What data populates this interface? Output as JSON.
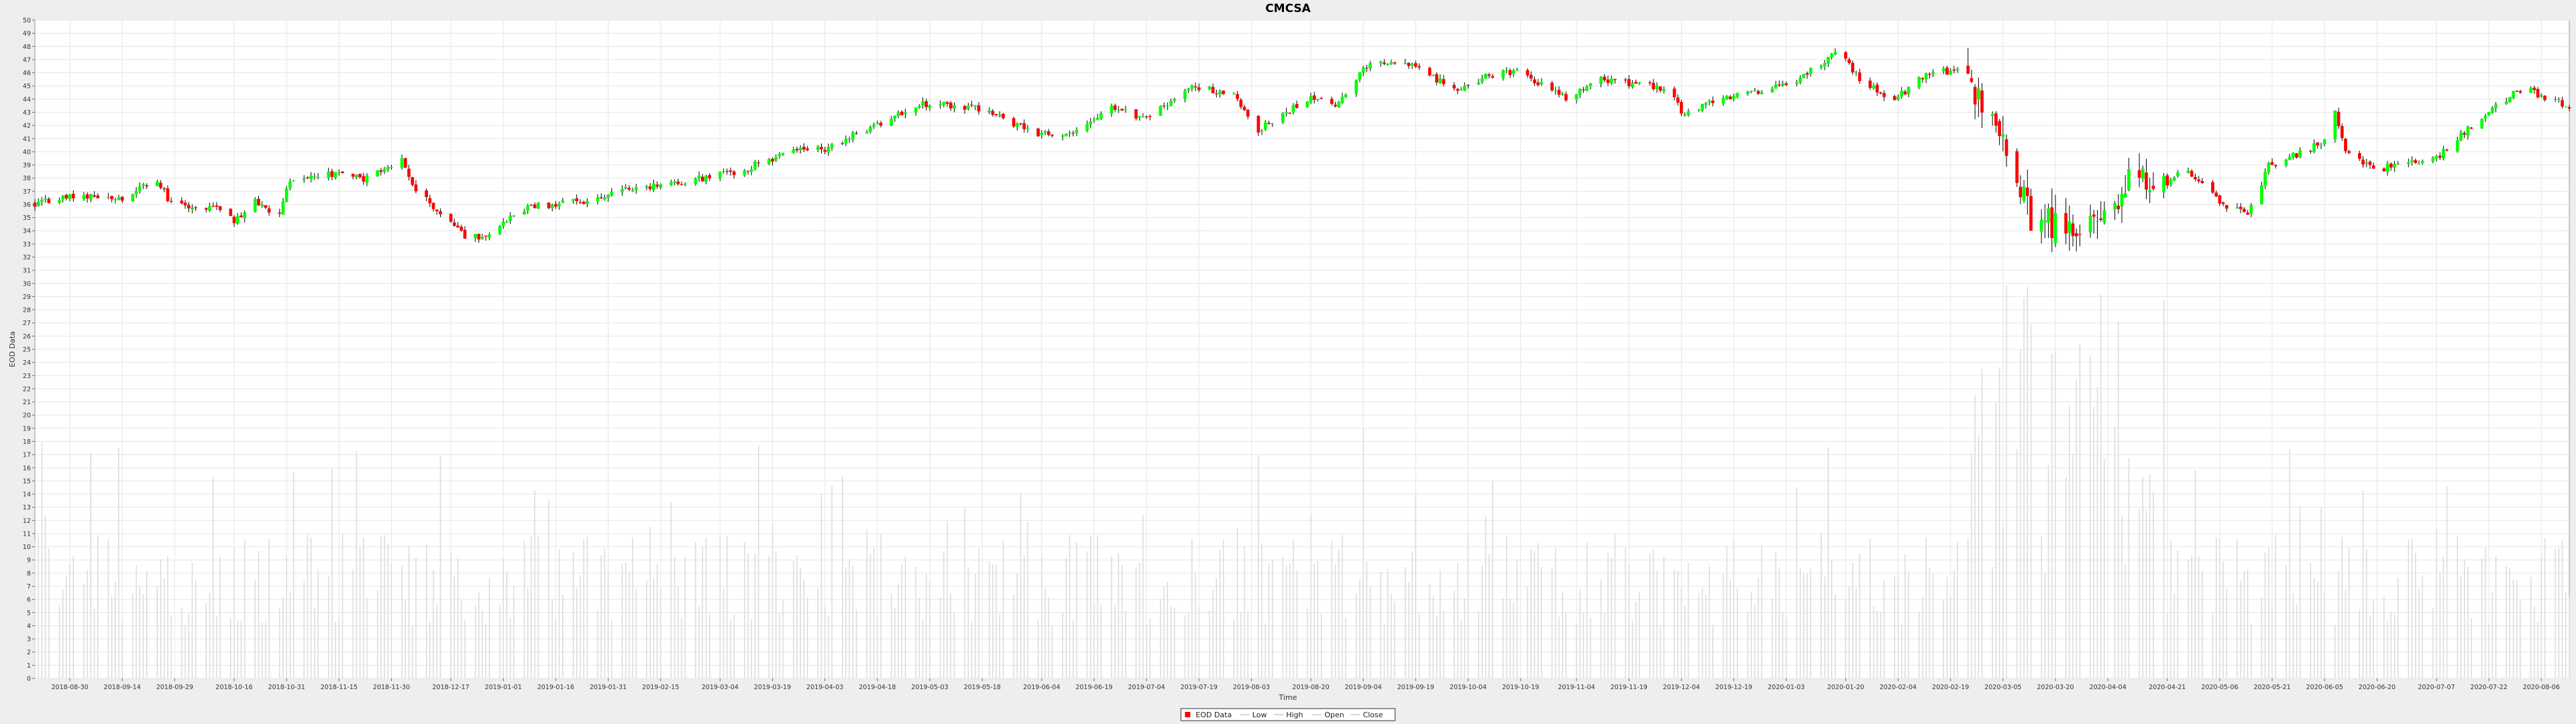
{
  "chart_data": {
    "type": "candlestick",
    "title": "CMCSA",
    "xlabel": "Time",
    "ylabel": "EOD Data",
    "ylim": [
      0,
      50
    ],
    "y_ticks": [
      0,
      1,
      2,
      3,
      4,
      5,
      6,
      7,
      8,
      9,
      10,
      11,
      12,
      13,
      14,
      15,
      16,
      17,
      18,
      19,
      20,
      21,
      22,
      23,
      24,
      25,
      26,
      27,
      28,
      29,
      30,
      31,
      32,
      33,
      34,
      35,
      36,
      37,
      38,
      39,
      40,
      41,
      42,
      43,
      44,
      45,
      46,
      47,
      48,
      49,
      50
    ],
    "x_range": [
      "2018-08-20",
      "2020-08-14"
    ],
    "x_ticks": [
      "2018-08-30",
      "2018-09-14",
      "2018-09-29",
      "2018-10-16",
      "2018-10-31",
      "2018-11-15",
      "2018-11-30",
      "2018-12-17",
      "2019-01-01",
      "2019-01-16",
      "2019-01-31",
      "2019-02-15",
      "2019-03-04",
      "2019-03-19",
      "2019-04-03",
      "2019-04-18",
      "2019-05-03",
      "2019-05-18",
      "2019-06-04",
      "2019-06-19",
      "2019-07-04",
      "2019-07-19",
      "2019-08-03",
      "2019-08-20",
      "2019-09-04",
      "2019-09-19",
      "2019-10-04",
      "2019-10-19",
      "2019-11-04",
      "2019-11-19",
      "2019-12-04",
      "2019-12-19",
      "2020-01-03",
      "2020-01-20",
      "2020-02-04",
      "2020-02-19",
      "2020-03-05",
      "2020-03-20",
      "2020-04-04",
      "2020-04-21",
      "2020-05-06",
      "2020-05-21",
      "2020-06-05",
      "2020-06-20",
      "2020-07-07",
      "2020-07-22",
      "2020-08-06"
    ],
    "price_path": [
      [
        "2018-08-20",
        36.1
      ],
      [
        "2018-09-01",
        36.6
      ],
      [
        "2018-09-14",
        36.4
      ],
      [
        "2018-09-24",
        37.9
      ],
      [
        "2018-09-28",
        36.0
      ],
      [
        "2018-10-12",
        35.6
      ],
      [
        "2018-10-16",
        34.6
      ],
      [
        "2018-10-22",
        36.4
      ],
      [
        "2018-10-28",
        34.7
      ],
      [
        "2018-11-01",
        38.0
      ],
      [
        "2018-11-15",
        38.3
      ],
      [
        "2018-11-22",
        37.9
      ],
      [
        "2018-12-03",
        39.3
      ],
      [
        "2018-12-06",
        37.4
      ],
      [
        "2018-12-21",
        33.5
      ],
      [
        "2018-12-27",
        33.6
      ],
      [
        "2019-01-08",
        35.8
      ],
      [
        "2019-01-25",
        36.3
      ],
      [
        "2019-02-01",
        36.9
      ],
      [
        "2019-02-20",
        37.6
      ],
      [
        "2019-03-10",
        38.6
      ],
      [
        "2019-03-25",
        40.0
      ],
      [
        "2019-04-03",
        40.2
      ],
      [
        "2019-04-20",
        42.3
      ],
      [
        "2019-04-30",
        43.7
      ],
      [
        "2019-05-15",
        43.4
      ],
      [
        "2019-06-04",
        41.3
      ],
      [
        "2019-06-12",
        41.2
      ],
      [
        "2019-06-24",
        43.5
      ],
      [
        "2019-07-04",
        42.4
      ],
      [
        "2019-07-16",
        44.9
      ],
      [
        "2019-07-28",
        44.6
      ],
      [
        "2019-08-05",
        41.7
      ],
      [
        "2019-08-20",
        44.1
      ],
      [
        "2019-08-27",
        43.5
      ],
      [
        "2019-09-04",
        46.4
      ],
      [
        "2019-09-15",
        46.9
      ],
      [
        "2019-09-20",
        46.2
      ],
      [
        "2019-10-01",
        44.6
      ],
      [
        "2019-10-10",
        45.8
      ],
      [
        "2019-10-19",
        46.1
      ],
      [
        "2019-11-01",
        44.0
      ],
      [
        "2019-11-10",
        45.6
      ],
      [
        "2019-12-01",
        44.8
      ],
      [
        "2019-12-04",
        42.8
      ],
      [
        "2019-12-18",
        44.2
      ],
      [
        "2020-01-03",
        45.0
      ],
      [
        "2020-01-18",
        47.6
      ],
      [
        "2020-01-24",
        45.5
      ],
      [
        "2020-02-03",
        43.9
      ],
      [
        "2020-02-12",
        46.0
      ],
      [
        "2020-02-22",
        46.1
      ],
      [
        "2020-03-02",
        43.1
      ],
      [
        "2020-03-08",
        39.7
      ],
      [
        "2020-03-12",
        35.4
      ],
      [
        "2020-03-16",
        34.3
      ],
      [
        "2020-03-22",
        35.0
      ],
      [
        "2020-03-26",
        33.3
      ],
      [
        "2020-03-31",
        35.5
      ],
      [
        "2020-04-04",
        34.0
      ],
      [
        "2020-04-10",
        37.8
      ],
      [
        "2020-04-20",
        37.2
      ],
      [
        "2020-04-25",
        38.9
      ],
      [
        "2020-05-06",
        36.2
      ],
      [
        "2020-05-14",
        35.1
      ],
      [
        "2020-05-20",
        38.9
      ],
      [
        "2020-06-04",
        40.6
      ],
      [
        "2020-06-08",
        42.9
      ],
      [
        "2020-06-11",
        39.8
      ],
      [
        "2020-06-20",
        38.7
      ],
      [
        "2020-07-07",
        39.5
      ],
      [
        "2020-07-16",
        41.8
      ],
      [
        "2020-07-26",
        43.9
      ],
      [
        "2020-08-01",
        44.8
      ],
      [
        "2020-08-14",
        43.5
      ]
    ],
    "volume_style": "thin light-gray bars along the bottom of the plot, mostly 4-13 on the price scale with peaks near 32 in early-mid 2020",
    "colors": {
      "up": "#00ff00",
      "down": "#ff0000",
      "wick": "#000000",
      "volume": "#d9d9d9",
      "plot_bg": "#ffffff",
      "page_bg": "#eeeeee",
      "grid": "#e6e6e6"
    },
    "legend": [
      {
        "label": "EOD Data",
        "symbol": "red-square-icon",
        "color": "#ff0000"
      },
      {
        "label": "Low",
        "symbol": "line-icon",
        "color": "#c8c8c8"
      },
      {
        "label": "High",
        "symbol": "line-icon",
        "color": "#c8c8c8"
      },
      {
        "label": "Open",
        "symbol": "line-icon",
        "color": "#c8c8c8"
      },
      {
        "label": "Close",
        "symbol": "line-icon",
        "color": "#c8c8c8"
      }
    ],
    "legend_position": "bottom-center",
    "grid": true
  }
}
